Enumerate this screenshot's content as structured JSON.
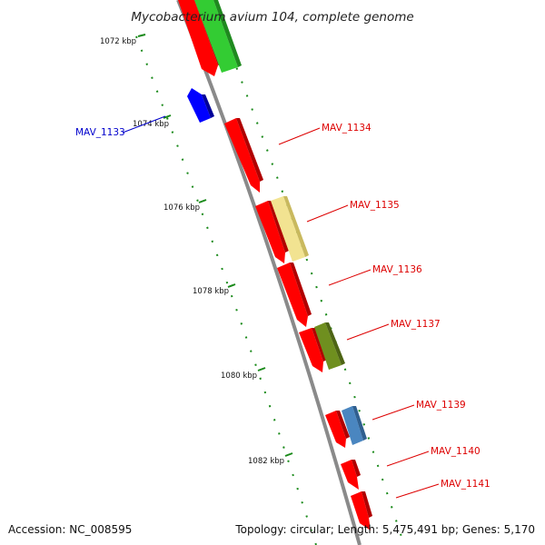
{
  "title": "Mycobacterium avium 104, complete genome",
  "footer": {
    "accession": "Accession: NC_008595",
    "summary": "Topology: circular; Length: 5,475,491 bp; Genes: 5,170"
  },
  "ruler": [
    "1072 kbp",
    "1074 kbp",
    "1076 kbp",
    "1078 kbp",
    "1080 kbp",
    "1082 kbp"
  ],
  "gene_labels": [
    {
      "text": "MAV_1133",
      "color": "#0000cc"
    },
    {
      "text": "MAV_1134",
      "color": "#dd0000"
    },
    {
      "text": "MAV_1135",
      "color": "#dd0000"
    },
    {
      "text": "MAV_1136",
      "color": "#dd0000"
    },
    {
      "text": "MAV_1137",
      "color": "#dd0000"
    },
    {
      "text": "MAV_1139",
      "color": "#dd0000"
    },
    {
      "text": "MAV_1140",
      "color": "#dd0000"
    },
    {
      "text": "MAV_1141",
      "color": "#dd0000"
    }
  ],
  "colors": {
    "backbone": "#8a8a8a",
    "dots": "#1a8a1a",
    "red": "#ff0000",
    "green": "#33cc33",
    "blue": "#0000ff",
    "yellow": "#f2e391",
    "olive": "#6f8f1f",
    "steel": "#4a86c0"
  }
}
